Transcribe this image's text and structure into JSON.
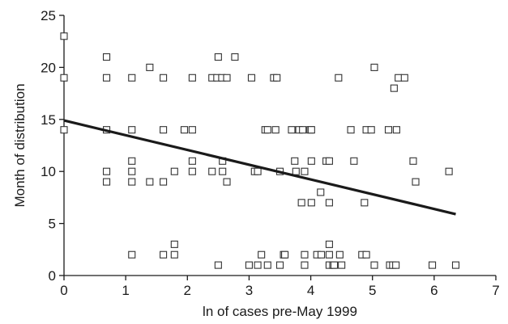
{
  "chart_data": {
    "type": "scatter",
    "title": "",
    "xlabel": "ln of cases pre-May 1999",
    "ylabel": "Month of distribution",
    "xlim": [
      0,
      7
    ],
    "ylim": [
      0,
      25
    ],
    "xticks": [
      0,
      1,
      2,
      3,
      4,
      5,
      6,
      7
    ],
    "yticks": [
      0,
      5,
      10,
      15,
      20,
      25
    ],
    "grid": false,
    "legend": "none",
    "marker": "open-square",
    "points": [
      [
        0,
        23
      ],
      [
        0,
        19
      ],
      [
        0,
        14
      ],
      [
        0.69,
        21
      ],
      [
        0.69,
        19
      ],
      [
        0.69,
        14
      ],
      [
        0.69,
        10
      ],
      [
        0.69,
        9
      ],
      [
        1.1,
        19
      ],
      [
        1.1,
        14
      ],
      [
        1.1,
        11
      ],
      [
        1.1,
        10
      ],
      [
        1.1,
        9
      ],
      [
        1.1,
        2
      ],
      [
        1.39,
        20
      ],
      [
        1.39,
        9
      ],
      [
        1.61,
        19
      ],
      [
        1.61,
        14
      ],
      [
        1.61,
        9
      ],
      [
        1.61,
        2
      ],
      [
        1.79,
        10
      ],
      [
        1.79,
        3
      ],
      [
        1.79,
        2
      ],
      [
        1.95,
        14
      ],
      [
        2.08,
        19
      ],
      [
        2.08,
        14
      ],
      [
        2.08,
        11
      ],
      [
        2.08,
        10
      ],
      [
        2.4,
        19
      ],
      [
        2.4,
        10
      ],
      [
        2.48,
        19
      ],
      [
        2.5,
        21
      ],
      [
        2.5,
        1
      ],
      [
        2.56,
        19
      ],
      [
        2.57,
        11
      ],
      [
        2.57,
        10
      ],
      [
        2.64,
        19
      ],
      [
        2.64,
        9
      ],
      [
        2.77,
        21
      ],
      [
        3.0,
        1
      ],
      [
        3.04,
        19
      ],
      [
        3.09,
        10
      ],
      [
        3.14,
        10
      ],
      [
        3.14,
        1
      ],
      [
        3.2,
        2
      ],
      [
        3.26,
        14
      ],
      [
        3.3,
        14
      ],
      [
        3.3,
        1
      ],
      [
        3.4,
        19
      ],
      [
        3.43,
        14
      ],
      [
        3.45,
        19
      ],
      [
        3.5,
        10
      ],
      [
        3.5,
        1
      ],
      [
        3.56,
        2
      ],
      [
        3.58,
        2
      ],
      [
        3.69,
        14
      ],
      [
        3.74,
        11
      ],
      [
        3.76,
        10
      ],
      [
        3.81,
        14
      ],
      [
        3.85,
        7
      ],
      [
        3.87,
        14
      ],
      [
        3.9,
        10
      ],
      [
        3.9,
        2
      ],
      [
        3.9,
        1
      ],
      [
        3.99,
        14
      ],
      [
        4.01,
        14
      ],
      [
        4.01,
        11
      ],
      [
        4.01,
        7
      ],
      [
        4.1,
        2
      ],
      [
        4.16,
        8
      ],
      [
        4.17,
        2
      ],
      [
        4.25,
        11
      ],
      [
        4.3,
        11
      ],
      [
        4.3,
        7
      ],
      [
        4.3,
        3
      ],
      [
        4.3,
        2
      ],
      [
        4.3,
        1
      ],
      [
        4.36,
        1
      ],
      [
        4.38,
        1
      ],
      [
        4.45,
        19
      ],
      [
        4.47,
        2
      ],
      [
        4.5,
        1
      ],
      [
        4.65,
        14
      ],
      [
        4.7,
        11
      ],
      [
        4.83,
        2
      ],
      [
        4.87,
        7
      ],
      [
        4.9,
        2
      ],
      [
        4.9,
        14
      ],
      [
        4.98,
        14
      ],
      [
        5.03,
        20
      ],
      [
        5.03,
        1
      ],
      [
        5.26,
        14
      ],
      [
        5.28,
        1
      ],
      [
        5.33,
        1
      ],
      [
        5.35,
        18
      ],
      [
        5.38,
        1
      ],
      [
        5.39,
        14
      ],
      [
        5.42,
        19
      ],
      [
        5.52,
        19
      ],
      [
        5.66,
        11
      ],
      [
        5.7,
        9
      ],
      [
        5.97,
        1
      ],
      [
        6.24,
        10
      ],
      [
        6.35,
        1
      ]
    ],
    "trendline": {
      "type": "linear",
      "x": [
        0,
        6.35
      ],
      "y": [
        14.9,
        5.9
      ]
    }
  }
}
